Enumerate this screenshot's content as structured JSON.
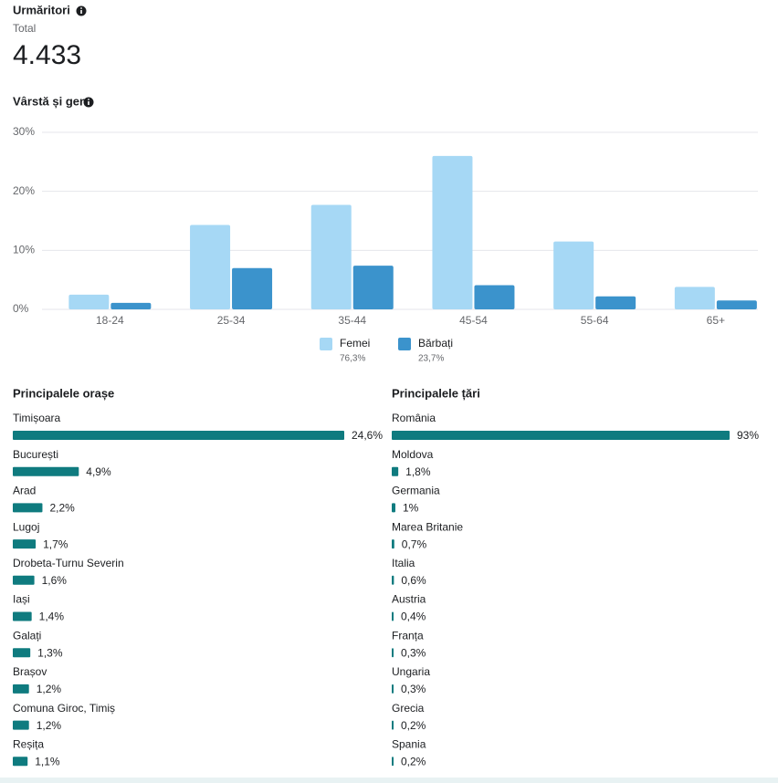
{
  "header": {
    "title": "Urmăritori",
    "subtitle": "Total",
    "total": "4.433"
  },
  "chart_data": [
    {
      "type": "bar",
      "title": "Vârstă și gen",
      "categories": [
        "18-24",
        "25-34",
        "35-44",
        "45-54",
        "55-64",
        "65+"
      ],
      "series": [
        {
          "name": "Femei",
          "color": "#a6d8f5",
          "values": [
            2.5,
            14.3,
            17.7,
            26,
            11.5,
            3.8
          ],
          "total": 76.3,
          "total_label": "76,3%"
        },
        {
          "name": "Bărbați",
          "color": "#3b93cc",
          "values": [
            1.1,
            7.0,
            7.4,
            4.1,
            2.2,
            1.5
          ],
          "total": 23.7,
          "total_label": "23,7%"
        }
      ],
      "ylim": [
        0,
        30
      ],
      "yticks": [
        {
          "value": 0,
          "label": "0%"
        },
        {
          "value": 10,
          "label": "10%"
        },
        {
          "value": 20,
          "label": "20%"
        },
        {
          "value": 30,
          "label": "30%"
        }
      ],
      "grid": true,
      "legend": "bottom"
    },
    {
      "type": "hbar",
      "title": "Principalele orașe",
      "color": "#0f7b7f",
      "categories": [
        "Timișoara",
        "București",
        "Arad",
        "Lugoj",
        "Drobeta-Turnu Severin",
        "Iași",
        "Galați",
        "Brașov",
        "Comuna Giroc, Timiș",
        "Reșița"
      ],
      "values": [
        24.6,
        4.9,
        2.2,
        1.7,
        1.6,
        1.4,
        1.3,
        1.2,
        1.2,
        1.1
      ],
      "value_labels": [
        "24,6%",
        "4,9%",
        "2,2%",
        "1,7%",
        "1,6%",
        "1,4%",
        "1,3%",
        "1,2%",
        "1,2%",
        "1,1%"
      ]
    },
    {
      "type": "hbar",
      "title": "Principalele țări",
      "color": "#0f7b7f",
      "categories": [
        "România",
        "Moldova",
        "Germania",
        "Marea Britanie",
        "Italia",
        "Austria",
        "Franța",
        "Ungaria",
        "Grecia",
        "Spania"
      ],
      "values": [
        93,
        1.8,
        1,
        0.7,
        0.6,
        0.4,
        0.3,
        0.3,
        0.2,
        0.2
      ],
      "value_labels": [
        "93%",
        "1,8%",
        "1%",
        "0,7%",
        "0,6%",
        "0,4%",
        "0,3%",
        "0,3%",
        "0,2%",
        "0,2%"
      ]
    }
  ]
}
